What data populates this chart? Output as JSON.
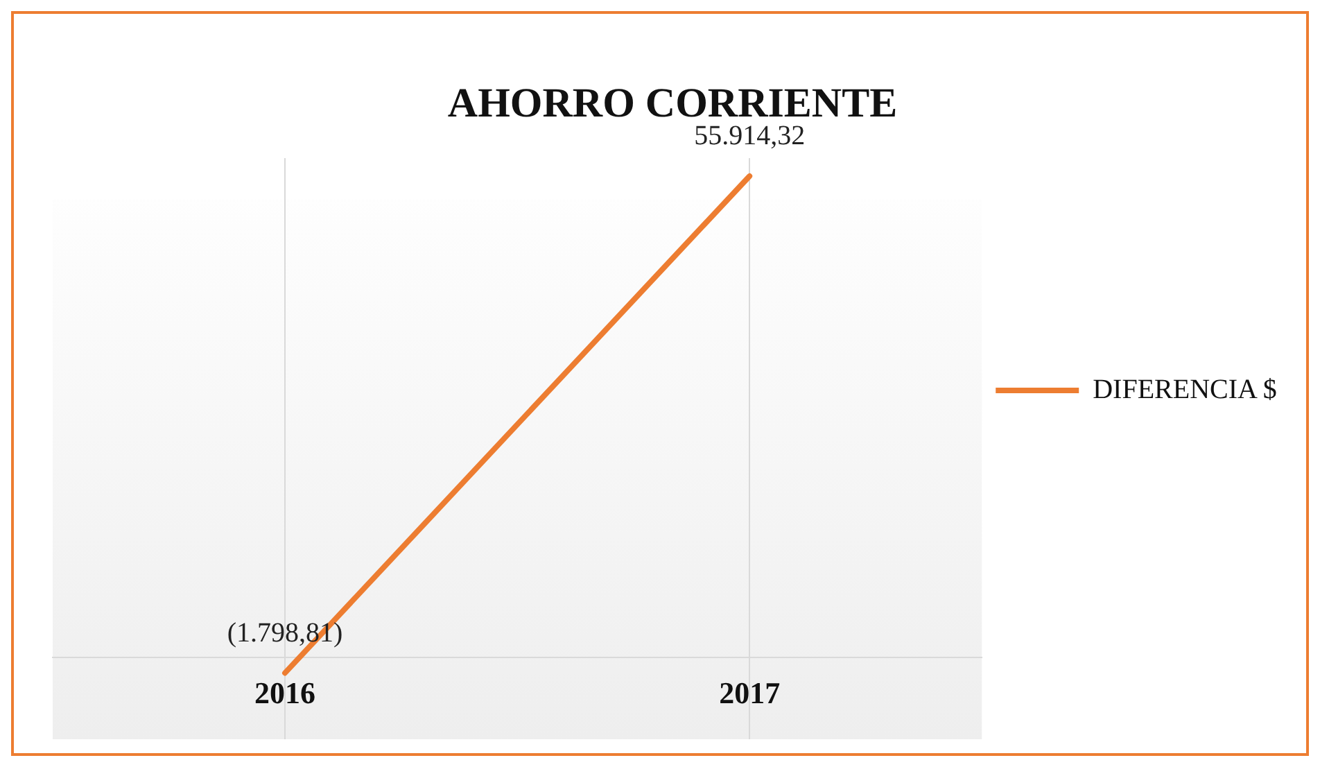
{
  "chart_data": {
    "type": "line",
    "title": "AHORRO CORRIENTE",
    "categories": [
      "2016",
      "2017"
    ],
    "series": [
      {
        "name": "DIFERENCIA $",
        "color": "#ed7d31",
        "values": [
          -1798.81,
          55914.32
        ],
        "value_labels": [
          "(1.798,81)",
          "55.914,32"
        ]
      }
    ],
    "ylim": [
      -9500,
      58000
    ],
    "grid": "x",
    "legend": "right",
    "marker": "none",
    "line_style": "solid"
  }
}
